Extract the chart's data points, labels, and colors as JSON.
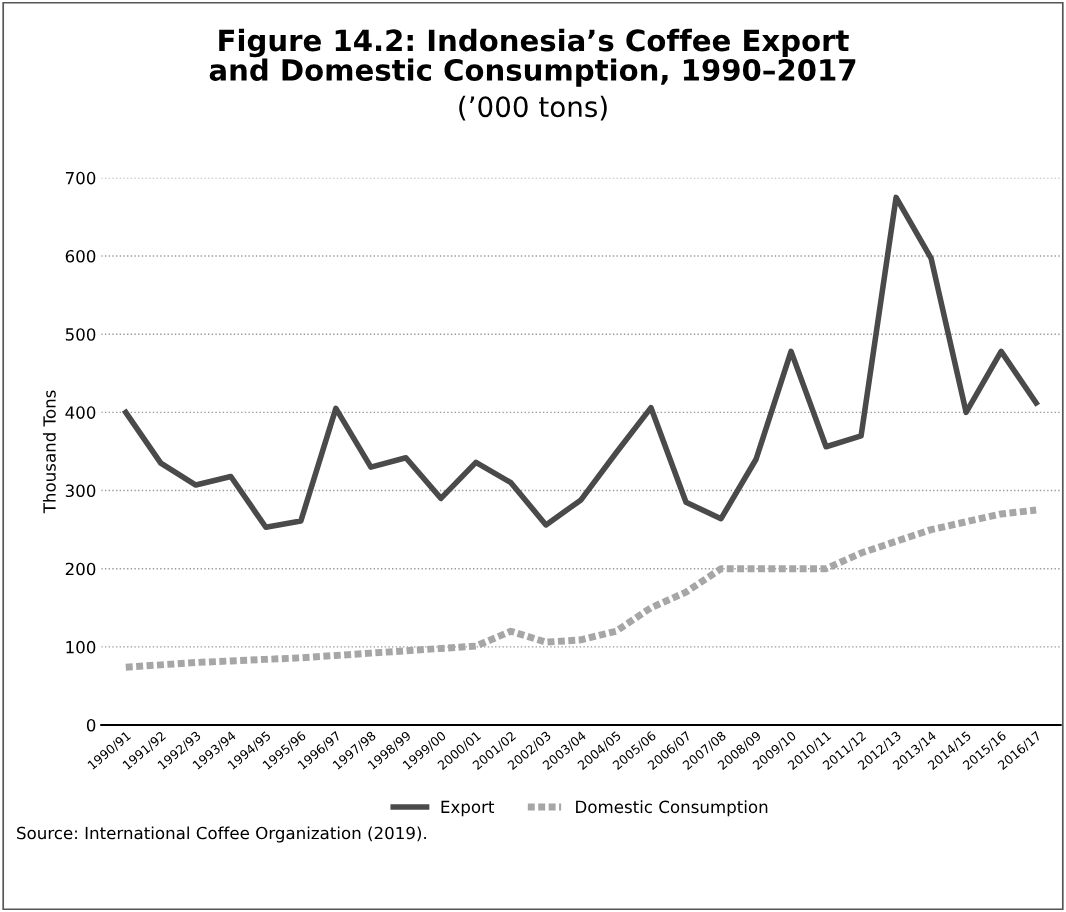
{
  "chart_data": {
    "type": "line",
    "title": "Figure 14.2: Indonesia’s Coffee Export\nand Domestic Consumption, 1990–2017",
    "subtitle": "(’000 tons)",
    "ylabel": "Thousand Tons",
    "categories": [
      "1990/91",
      "1991/92",
      "1992/93",
      "1993/94",
      "1994/95",
      "1995/96",
      "1996/97",
      "1997/98",
      "1998/99",
      "1999/00",
      "2000/01",
      "2001/02",
      "2002/03",
      "2003/04",
      "2004/05",
      "2005/06",
      "2006/07",
      "2007/08",
      "2008/09",
      "2009/10",
      "2010/11",
      "2011/12",
      "2012/13",
      "2013/14",
      "2014/15",
      "2015/16",
      "2016/17"
    ],
    "series": [
      {
        "name": "Export",
        "color": "#4a4a4a",
        "line_style": "solid",
        "values": [
          400,
          335,
          307,
          318,
          253,
          261,
          405,
          330,
          342,
          290,
          336,
          310,
          256,
          288,
          348,
          406,
          285,
          264,
          340,
          478,
          356,
          370,
          675,
          597,
          400,
          478,
          412
        ]
      },
      {
        "name": "Domestic Consumption",
        "color": "#a6a6a6",
        "line_style": "dotted",
        "values": [
          74,
          77,
          80,
          82,
          84,
          86,
          89,
          92,
          95,
          98,
          101,
          120,
          106,
          109,
          120,
          150,
          170,
          200,
          200,
          200,
          200,
          220,
          235,
          250,
          260,
          270,
          275
        ]
      }
    ],
    "ylim": [
      0,
      700
    ],
    "yticks": [
      0,
      100,
      200,
      300,
      400,
      500,
      600,
      700
    ],
    "grid": "y",
    "legend": "bottom",
    "marker": "none",
    "annotations": [
      "Source: International Coffee Organization (2019)."
    ]
  }
}
